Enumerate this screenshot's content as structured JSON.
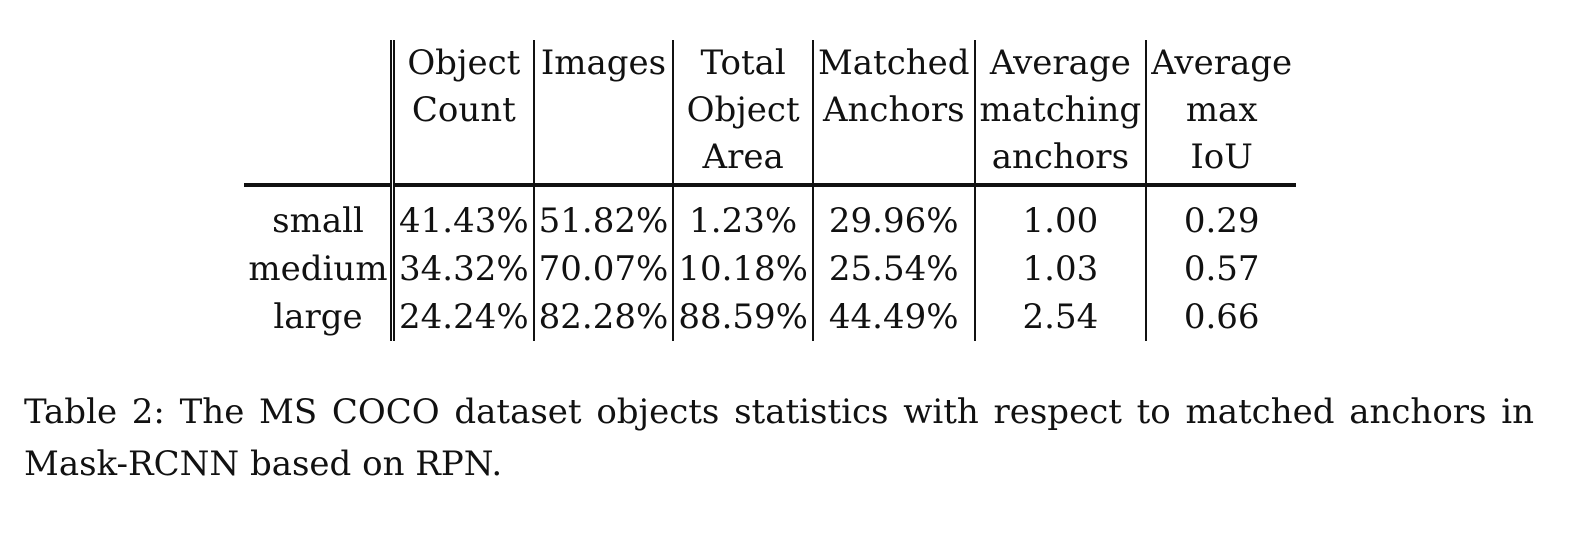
{
  "table": {
    "headers": [
      {
        "lines": [
          ""
        ]
      },
      {
        "lines": [
          "Object",
          "Count"
        ]
      },
      {
        "lines": [
          "Images"
        ]
      },
      {
        "lines": [
          "Total",
          "Object",
          "Area"
        ]
      },
      {
        "lines": [
          "Matched",
          "Anchors"
        ]
      },
      {
        "lines": [
          "Average",
          "matching",
          "anchors"
        ]
      },
      {
        "lines": [
          "Average",
          "max",
          "IoU"
        ]
      }
    ],
    "rows": [
      {
        "label": "small",
        "cells": [
          "41.43%",
          "51.82%",
          "1.23%",
          "29.96%",
          "1.00",
          "0.29"
        ]
      },
      {
        "label": "medium",
        "cells": [
          "34.32%",
          "70.07%",
          "10.18%",
          "25.54%",
          "1.03",
          "0.57"
        ]
      },
      {
        "label": "large",
        "cells": [
          "24.24%",
          "82.28%",
          "88.59%",
          "44.49%",
          "2.54",
          "0.66"
        ]
      }
    ]
  },
  "caption": "Table 2: The MS COCO dataset objects statistics with respect to matched anchors in Mask-RCNN based on RPN.",
  "colors": {
    "text": "#111111",
    "background": "#ffffff"
  }
}
